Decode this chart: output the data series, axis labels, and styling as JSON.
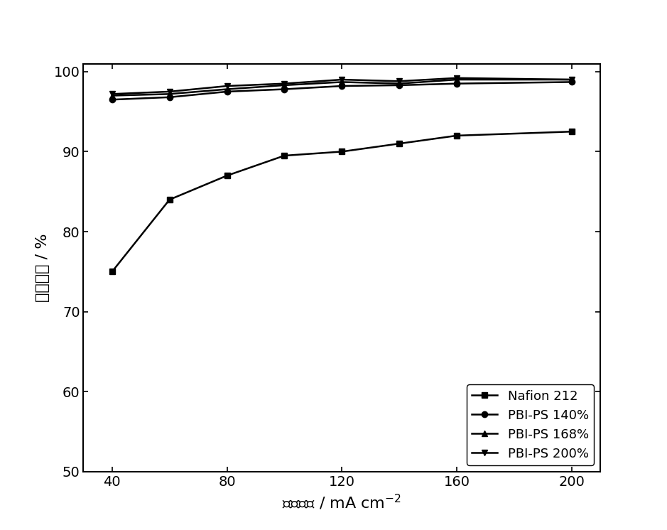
{
  "x": [
    40,
    60,
    80,
    100,
    120,
    140,
    160,
    200
  ],
  "nafion212": [
    75.0,
    84.0,
    87.0,
    89.5,
    90.0,
    91.0,
    92.0,
    92.5
  ],
  "pbi_ps_140": [
    96.5,
    96.8,
    97.5,
    97.8,
    98.2,
    98.3,
    98.5,
    98.7
  ],
  "pbi_ps_168": [
    97.0,
    97.2,
    97.8,
    98.3,
    98.7,
    98.5,
    99.0,
    99.0
  ],
  "pbi_ps_200": [
    97.2,
    97.5,
    98.2,
    98.5,
    99.0,
    98.8,
    99.2,
    99.0
  ],
  "xlabel": "电流密度 / mA cm$^{-2}$",
  "ylabel": "库伦效率 / %",
  "xlim": [
    30,
    210
  ],
  "ylim": [
    50,
    101
  ],
  "xticks": [
    40,
    80,
    120,
    160,
    200
  ],
  "yticks": [
    50,
    60,
    70,
    80,
    90,
    100
  ],
  "legend_nafion": "Nafion 212",
  "legend_140": "PBI-PS 140%",
  "legend_168": "PBI-PS 168%",
  "legend_200": "PBI-PS 200%",
  "line_color": "#000000",
  "marker_nafion": "s",
  "marker_140": "o",
  "marker_168": "^",
  "marker_200": "v",
  "linewidth": 1.8,
  "markersize": 6,
  "fontsize_label": 16,
  "fontsize_tick": 14,
  "fontsize_legend": 13
}
